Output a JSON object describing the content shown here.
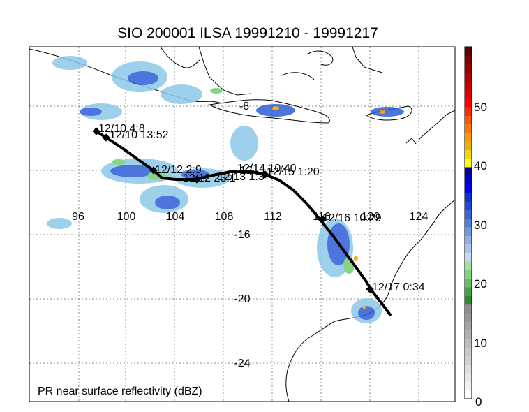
{
  "title": "SIO 200001 ILSA 19991210 - 19991217",
  "caption": "PR near surface reflectivity (dBZ)",
  "longitude_labels": [
    "96",
    "100",
    "104",
    "108",
    "112",
    "116",
    "120",
    "124"
  ],
  "latitude_labels": [
    "-8",
    "-12",
    "-16",
    "-20",
    "-24"
  ],
  "track_labels": [
    "12/10 4:8",
    "12/10 13:52",
    "12/12 2:9",
    "12/12 23:1",
    "12/13 1:3",
    "12/14 10:40",
    "12/15 1:20",
    "12/16 10:29",
    "12/17 0:34"
  ],
  "colorbar": {
    "ticks": [
      "0",
      "10",
      "20",
      "30",
      "40",
      "50"
    ],
    "colors": [
      "#ffffff",
      "#f2f2f2",
      "#e8e8e8",
      "#dedede",
      "#d2d2d2",
      "#c8c8c8",
      "#bcbcbc",
      "#b0b0b0",
      "#a4a4a4",
      "#989898",
      "#8c8c8c",
      "#2e8b2e",
      "#3fa83f",
      "#5fc05f",
      "#7fd47f",
      "#9fe49f",
      "#c6d8f5",
      "#aac4f0",
      "#8eb0ea",
      "#6f98e2",
      "#507fda",
      "#3a63d8",
      "#1f4bcf",
      "#0d33c4",
      "#0000ff",
      "#0000cc",
      "#000099",
      "#ffff00",
      "#f0d800",
      "#e8b400",
      "#ff9900",
      "#ff7700",
      "#ff5500",
      "#ff2a00",
      "#ff0000",
      "#e00000",
      "#c80000",
      "#b00000",
      "#980000",
      "#800000",
      "#5a0000"
    ]
  }
}
